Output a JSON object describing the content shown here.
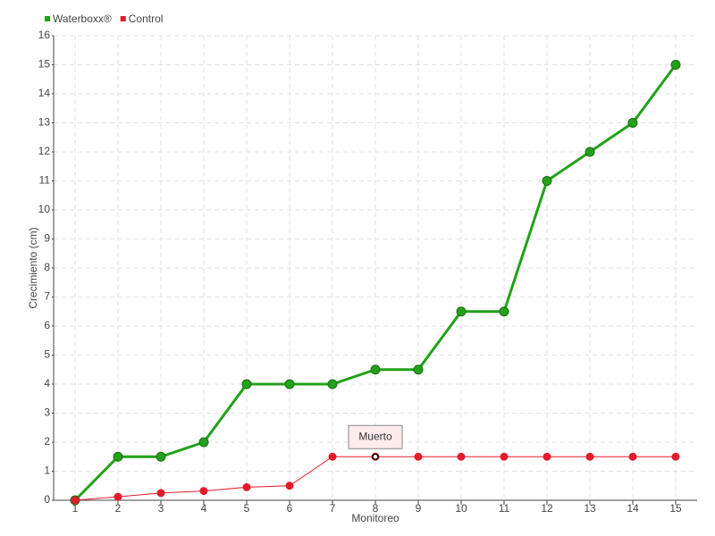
{
  "chart_data": {
    "type": "line",
    "x_label": "Monitoreo",
    "y_label": "Crecimiento (cm)",
    "categories": [
      "1",
      "2",
      "3",
      "4",
      "5",
      "6",
      "7",
      "8",
      "9",
      "10",
      "11",
      "12",
      "13",
      "14",
      "15"
    ],
    "series": [
      {
        "name": "Waterboxx®",
        "color": "#23a11a",
        "values": [
          0,
          1.5,
          1.5,
          2,
          4,
          4,
          4,
          4.5,
          4.5,
          6.5,
          6.5,
          11,
          12,
          13,
          15
        ]
      },
      {
        "name": "Control",
        "color": "#e31b2b",
        "values": [
          0,
          0.12,
          0.25,
          0.32,
          0.45,
          0.5,
          1.5,
          1.5,
          1.5,
          1.5,
          1.5,
          1.5,
          1.5,
          1.5,
          1.5
        ]
      }
    ],
    "ylim": [
      0,
      16
    ],
    "yticks": [
      0,
      1,
      2,
      3,
      4,
      5,
      6,
      7,
      8,
      9,
      10,
      11,
      12,
      13,
      14,
      15,
      16
    ],
    "grid": true,
    "legend": "top-left",
    "annotations": [
      {
        "text": "Muerto",
        "series": "Control",
        "x": "8"
      }
    ]
  }
}
